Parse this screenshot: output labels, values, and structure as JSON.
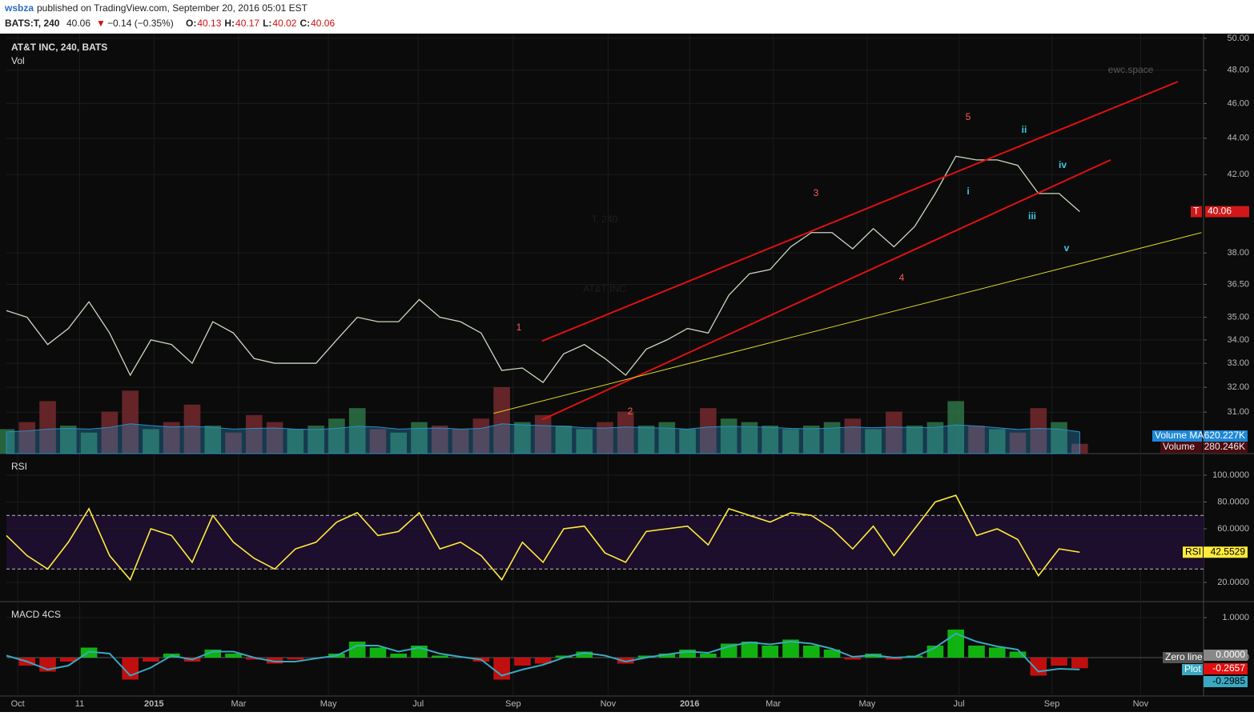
{
  "header": {
    "user": "wsbza",
    "text": "published on TradingView.com, September 20, 2016 05:01 EST",
    "symbol": "BATS:T, 240",
    "last": "40.06",
    "arrow": "▼",
    "change": "−0.14 (−0.35%)",
    "ohlc": [
      {
        "label": "O:",
        "value": "40.13"
      },
      {
        "label": "H:",
        "value": "40.17"
      },
      {
        "label": "L:",
        "value": "40.02"
      },
      {
        "label": "C:",
        "value": "40.06"
      }
    ]
  },
  "chart_data": [
    {
      "type": "line",
      "title": "AT&T INC, 240, BATS",
      "watermark": [
        "T, 240",
        "AT&T INC"
      ],
      "brand": "ewc.space",
      "log_scale": true,
      "grid": true,
      "x": [
        0,
        2,
        4,
        6,
        8,
        10,
        12,
        14,
        16,
        18,
        20,
        22,
        24,
        26,
        28,
        30,
        32,
        34,
        36,
        38,
        40,
        42,
        44,
        46,
        48,
        50,
        52,
        54,
        56,
        58,
        60,
        62,
        64,
        66,
        68,
        70,
        72,
        74,
        76,
        78,
        80,
        82,
        84,
        86,
        88,
        90,
        92,
        94,
        96,
        98,
        100,
        102,
        104
      ],
      "xlim": [
        0,
        116
      ],
      "xticks": [
        {
          "value": 1.1,
          "label": "Oct"
        },
        {
          "value": 7.1,
          "label": "11"
        },
        {
          "value": 14.3,
          "label": "2015"
        },
        {
          "value": 22.5,
          "label": "Mar"
        },
        {
          "value": 31.2,
          "label": "May"
        },
        {
          "value": 39.9,
          "label": "Jul"
        },
        {
          "value": 49.1,
          "label": "Sep"
        },
        {
          "value": 58.3,
          "label": "Nov"
        },
        {
          "value": 66.2,
          "label": "2016"
        },
        {
          "value": 74.3,
          "label": "Mar"
        },
        {
          "value": 83.4,
          "label": "May"
        },
        {
          "value": 92.3,
          "label": "Jul"
        },
        {
          "value": 101.3,
          "label": "Sep"
        },
        {
          "value": 109.9,
          "label": "Nov"
        }
      ],
      "ylim": [
        29.4,
        50.3
      ],
      "yticks": [
        {
          "value": 31,
          "label": "31.00"
        },
        {
          "value": 32,
          "label": "32.00"
        },
        {
          "value": 33,
          "label": "33.00"
        },
        {
          "value": 34,
          "label": "34.00"
        },
        {
          "value": 35,
          "label": "35.00"
        },
        {
          "value": 36.5,
          "label": "36.50"
        },
        {
          "value": 38,
          "label": "38.00"
        },
        {
          "value": 42,
          "label": "42.00"
        },
        {
          "value": 44,
          "label": "44.00"
        },
        {
          "value": 46,
          "label": "46.00"
        },
        {
          "value": 48,
          "label": "48.00"
        },
        {
          "value": 50,
          "label": "50.00"
        }
      ],
      "series": [
        {
          "name": "T",
          "color": "#c8d8c0",
          "values": [
            35.3,
            35.0,
            33.8,
            34.5,
            35.7,
            34.3,
            32.5,
            34.0,
            33.8,
            33.0,
            34.8,
            34.3,
            33.2,
            33.0,
            33.0,
            33.0,
            34.0,
            35.0,
            34.8,
            34.8,
            35.8,
            35.0,
            34.8,
            34.3,
            32.7,
            32.8,
            32.2,
            33.4,
            33.8,
            33.2,
            32.5,
            33.6,
            34.0,
            34.5,
            34.3,
            36.0,
            37.0,
            37.2,
            38.3,
            39.0,
            39.0,
            38.2,
            39.2,
            38.3,
            39.3,
            41.0,
            43.0,
            42.8,
            42.8,
            42.5,
            41.0,
            41.0,
            40.06
          ]
        }
      ],
      "trend_lines": [
        {
          "color": "#e01010",
          "x": [
            51.9,
            113.5
          ],
          "values": [
            33.95,
            47.3
          ]
        },
        {
          "color": "#e01010",
          "x": [
            51.9,
            107.0
          ],
          "values": [
            30.7,
            42.8
          ]
        },
        {
          "color": "#d8d820",
          "x": [
            47.2,
            115.8
          ],
          "values": [
            30.95,
            39.0
          ]
        }
      ],
      "annotations": [
        {
          "text": "1",
          "color": "#ff5a5a"
        },
        {
          "text": "2",
          "color": "#ff5a5a"
        },
        {
          "text": "3",
          "color": "#ff5a5a"
        },
        {
          "text": "4",
          "color": "#ff5a5a"
        },
        {
          "text": "5",
          "color": "#ff5a5a"
        },
        {
          "text": "i",
          "color": "#3cc8e8"
        },
        {
          "text": "ii",
          "color": "#3cc8e8"
        },
        {
          "text": "iii",
          "color": "#3cc8e8"
        },
        {
          "text": "iv",
          "color": "#3cc8e8"
        },
        {
          "text": "v",
          "color": "#3cc8e8"
        }
      ],
      "volume": {
        "title": "Vol",
        "ylim": [
          0,
          12000000
        ],
        "series": [
          {
            "name": "Volume",
            "colors": [
              "#2e7a4a",
              "#7a2a30"
            ],
            "last_label": "280.246K",
            "values": [
              700000,
              900000,
              1500000,
              800000,
              600000,
              1200000,
              1800000,
              700000,
              900000,
              1400000,
              800000,
              600000,
              1100000,
              900000,
              700000,
              800000,
              1000000,
              1300000,
              700000,
              600000,
              900000,
              800000,
              700000,
              1000000,
              1900000,
              900000,
              1100000,
              800000,
              700000,
              900000,
              1200000,
              800000,
              900000,
              700000,
              1300000,
              1000000,
              900000,
              800000,
              700000,
              800000,
              900000,
              1000000,
              700000,
              1200000,
              800000,
              900000,
              1500000,
              800000,
              700000,
              600000,
              1300000,
              900000,
              280246
            ]
          },
          {
            "name": "Volume MA",
            "color": "#2a8ec8",
            "last_label": "620.227K",
            "values": [
              620000,
              650000,
              700000,
              720000,
              700000,
              750000,
              850000,
              800000,
              760000,
              780000,
              750000,
              700000,
              720000,
              730000,
              700000,
              690000,
              720000,
              780000,
              760000,
              700000,
              720000,
              730000,
              700000,
              720000,
              850000,
              820000,
              800000,
              780000,
              740000,
              730000,
              760000,
              740000,
              730000,
              700000,
              760000,
              780000,
              770000,
              750000,
              720000,
              710000,
              730000,
              760000,
              740000,
              760000,
              740000,
              750000,
              820000,
              790000,
              740000,
              690000,
              720000,
              700000,
              620227
            ]
          }
        ]
      }
    },
    {
      "type": "line",
      "title": "RSI",
      "ylim": [
        5.7,
        116.1
      ],
      "band": [
        30,
        70
      ],
      "yticks": [
        {
          "value": 100,
          "label": "100.0000"
        },
        {
          "value": 80,
          "label": "80.0000"
        },
        {
          "value": 60,
          "label": "60.0000"
        },
        {
          "value": 20,
          "label": "20.0000"
        }
      ],
      "series": [
        {
          "name": "RSI",
          "color": "#ffeb3b",
          "values": [
            55,
            40,
            30,
            50,
            75,
            40,
            22,
            60,
            55,
            35,
            70,
            50,
            38,
            30,
            45,
            50,
            65,
            72,
            55,
            58,
            72,
            45,
            50,
            40,
            22,
            50,
            35,
            60,
            62,
            42,
            35,
            58,
            60,
            62,
            48,
            75,
            70,
            65,
            72,
            70,
            60,
            45,
            62,
            40,
            60,
            80,
            85,
            55,
            60,
            52,
            25,
            45,
            42.5529
          ]
        }
      ]
    },
    {
      "type": "bar",
      "title": "MACD 4CS",
      "ylim": [
        -0.96,
        1.4
      ],
      "yticks": [
        {
          "value": 1,
          "label": "1.0000"
        },
        {
          "value": 0,
          "label": "0.0000"
        }
      ],
      "zero_line": {
        "name": "Zero line",
        "value": 0,
        "label": "0.0000"
      },
      "series": [
        {
          "name": "Plot",
          "type": "bar",
          "colors": [
            "#10d010",
            "#e01010"
          ],
          "values": [
            0.0,
            -0.2,
            -0.35,
            -0.1,
            0.25,
            0.0,
            -0.55,
            -0.1,
            0.1,
            -0.1,
            0.2,
            0.1,
            -0.05,
            -0.15,
            -0.05,
            0.0,
            0.1,
            0.4,
            0.25,
            0.1,
            0.3,
            0.05,
            0.0,
            -0.1,
            -0.55,
            -0.2,
            -0.15,
            0.05,
            0.15,
            0.0,
            -0.15,
            0.05,
            0.1,
            0.2,
            0.1,
            0.35,
            0.4,
            0.3,
            0.45,
            0.3,
            0.2,
            -0.05,
            0.1,
            -0.05,
            0.05,
            0.3,
            0.7,
            0.3,
            0.25,
            0.15,
            -0.45,
            -0.2,
            -0.2657
          ]
        },
        {
          "type": "line",
          "color": "#3aa8c1",
          "values": [
            0.05,
            -0.1,
            -0.3,
            -0.2,
            0.15,
            0.1,
            -0.45,
            -0.25,
            0.05,
            -0.05,
            0.15,
            0.15,
            0.0,
            -0.1,
            -0.1,
            -0.02,
            0.05,
            0.3,
            0.3,
            0.15,
            0.25,
            0.1,
            0.02,
            -0.05,
            -0.45,
            -0.3,
            -0.18,
            0.0,
            0.12,
            0.05,
            -0.1,
            0.0,
            0.08,
            0.15,
            0.12,
            0.28,
            0.38,
            0.33,
            0.4,
            0.35,
            0.22,
            0.02,
            0.06,
            0.0,
            0.02,
            0.25,
            0.6,
            0.4,
            0.28,
            0.2,
            -0.35,
            -0.28,
            -0.2985
          ]
        }
      ]
    }
  ]
}
